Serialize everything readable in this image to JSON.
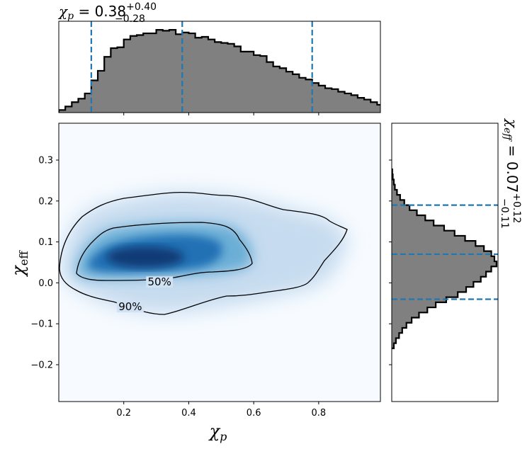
{
  "chart_data": [
    {
      "type": "heatmap",
      "xlabel": "χ",
      "xlabel_sub": "p",
      "ylabel": "χ",
      "ylabel_sub": "eff",
      "xlim": [
        0.0,
        0.99
      ],
      "ylim": [
        -0.29,
        0.39
      ],
      "x_ticks": [
        0.2,
        0.4,
        0.6,
        0.8
      ],
      "y_ticks": [
        -0.2,
        -0.1,
        0.0,
        0.1,
        0.2,
        0.3
      ],
      "x_tick_labels": [
        "0.2",
        "0.4",
        "0.6",
        "0.8"
      ],
      "y_tick_labels": [
        "−0.2",
        "−0.1",
        "0.0",
        "0.1",
        "0.2",
        "0.3"
      ],
      "colormap": [
        "#f7fbff",
        "#c6dbef",
        "#6baed6",
        "#2171b5",
        "#08306b"
      ],
      "peak": {
        "x": 0.28,
        "y": 0.06
      },
      "contours": [
        {
          "label": "50%",
          "label_at": {
            "x": 0.31,
            "y": 0.002
          }
        },
        {
          "label": "90%",
          "label_at": {
            "x": 0.22,
            "y": -0.058
          }
        }
      ],
      "contour_color": "#000000",
      "grid": false
    },
    {
      "type": "bar",
      "title": "χ",
      "title_sub": "p",
      "title_text": " = 0.38",
      "title_sup": "+0.40",
      "title_subscript": "−0.28",
      "bin_edges_start": 0.0,
      "bin_width": 0.02,
      "values": [
        0.03,
        0.07,
        0.12,
        0.16,
        0.22,
        0.37,
        0.48,
        0.64,
        0.74,
        0.75,
        0.84,
        0.88,
        0.89,
        0.91,
        0.91,
        0.95,
        0.94,
        0.95,
        0.9,
        0.92,
        0.91,
        0.86,
        0.87,
        0.84,
        0.81,
        0.8,
        0.79,
        0.76,
        0.7,
        0.7,
        0.66,
        0.65,
        0.58,
        0.53,
        0.51,
        0.47,
        0.44,
        0.4,
        0.38,
        0.34,
        0.31,
        0.28,
        0.27,
        0.24,
        0.22,
        0.2,
        0.17,
        0.15,
        0.12,
        0.09,
        0.07,
        0.05,
        0.03,
        0.01
      ],
      "ylim": [
        0,
        1.0
      ],
      "fill_color": "#808080",
      "edge_color": "#000000",
      "quantile_lines": [
        0.1,
        0.38,
        0.78
      ],
      "quantile_color": "#1f77b4"
    },
    {
      "type": "bar",
      "orientation": "horizontal",
      "title": "χ",
      "title_sub": "eff",
      "title_text": " = 0.07",
      "title_sup": "+0.12",
      "title_subscript": "−0.11",
      "bin_edges_start": -0.16,
      "bin_width": 0.0125,
      "values": [
        0.02,
        0.04,
        0.07,
        0.1,
        0.14,
        0.19,
        0.26,
        0.34,
        0.42,
        0.52,
        0.63,
        0.71,
        0.78,
        0.85,
        0.9,
        0.95,
        1.0,
        0.98,
        0.95,
        0.88,
        0.8,
        0.7,
        0.6,
        0.5,
        0.4,
        0.32,
        0.24,
        0.17,
        0.12,
        0.08,
        0.05,
        0.03,
        0.02,
        0.01,
        0.005
      ],
      "ylim": [
        -0.29,
        0.39
      ],
      "xlim": [
        0,
        3.6
      ],
      "fill_color": "#808080",
      "edge_color": "#000000",
      "quantile_lines": [
        -0.04,
        0.07,
        0.19
      ],
      "quantile_color": "#1f77b4"
    }
  ]
}
